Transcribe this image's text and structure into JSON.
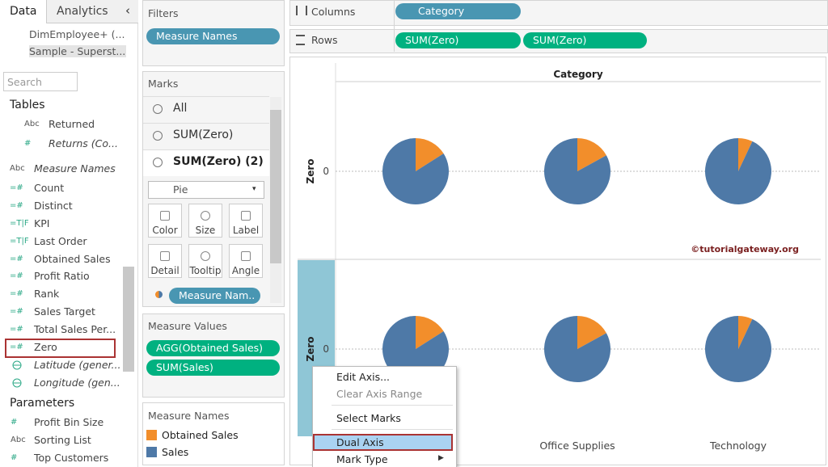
{
  "sidebar": {
    "tabs": [
      "Data",
      "Analytics"
    ],
    "sources": [
      "DimEmployee+ (...",
      "Sample - Superst..."
    ],
    "search_placeholder": "Search",
    "tables_title": "Tables",
    "fields": [
      {
        "icon": "Abc",
        "name": "Returned",
        "indent": true
      },
      {
        "icon": "#",
        "name": "Returns (Co...",
        "italic": true,
        "indent": true
      },
      {
        "icon": "Abc",
        "name": "Measure Names",
        "italic": true
      },
      {
        "icon": "=#",
        "name": "Count"
      },
      {
        "icon": "=#",
        "name": "Distinct"
      },
      {
        "icon": "=T|F",
        "name": "KPI"
      },
      {
        "icon": "=T|F",
        "name": "Last Order"
      },
      {
        "icon": "=#",
        "name": "Obtained Sales"
      },
      {
        "icon": "=#",
        "name": "Profit Ratio"
      },
      {
        "icon": "=#",
        "name": "Rank"
      },
      {
        "icon": "=#",
        "name": "Sales Target"
      },
      {
        "icon": "=#",
        "name": "Total Sales Per..."
      },
      {
        "icon": "=#",
        "name": "Zero",
        "selected": true
      },
      {
        "geo": true,
        "name": "Latitude (gener...",
        "italic": true
      },
      {
        "geo": true,
        "name": "Longitude (gen...",
        "italic": true
      }
    ],
    "parameters_title": "Parameters",
    "parameters": [
      {
        "icon": "#",
        "name": "Profit Bin Size"
      },
      {
        "icon": "Abc",
        "name": "Sorting List"
      },
      {
        "icon": "#",
        "name": "Top Customers"
      }
    ]
  },
  "filters": {
    "title": "Filters",
    "pills": [
      "Measure Names"
    ]
  },
  "marks": {
    "title": "Marks",
    "layers": [
      "All",
      "SUM(Zero)",
      "SUM(Zero) (2)"
    ],
    "mark_type": "Pie",
    "buttons": [
      "Color",
      "Size",
      "Label",
      "Detail",
      "Tooltip",
      "Angle"
    ],
    "pill": "Measure Nam.."
  },
  "measure_values": {
    "title": "Measure Values",
    "pills": [
      "AGG(Obtained Sales)",
      "SUM(Sales)"
    ]
  },
  "measure_names": {
    "title": "Measure Names",
    "items": [
      {
        "name": "Obtained Sales",
        "color": "#f28e2b"
      },
      {
        "name": "Sales",
        "color": "#4e79a7"
      }
    ]
  },
  "columns": {
    "label": "Columns",
    "pills": [
      "Category"
    ]
  },
  "rows": {
    "label": "Rows",
    "pills": [
      "SUM(Zero)",
      "SUM(Zero)"
    ]
  },
  "view": {
    "header": "Category",
    "categories": [
      null,
      "Office Supplies",
      "Technology"
    ],
    "row_label": "Zero",
    "tick": 0,
    "panes": [
      {
        "values": [
          [
            16,
            84
          ],
          [
            17,
            83
          ],
          [
            7,
            93
          ]
        ]
      },
      {
        "values": [
          [
            16,
            84
          ],
          [
            17,
            83
          ],
          [
            7,
            93
          ]
        ]
      }
    ]
  },
  "watermark": "©tutorialgateway.org",
  "context_menu": {
    "items": [
      "Edit Axis...",
      "Clear Axis Range",
      "Select Marks",
      "Dual Axis",
      "Mark Type"
    ]
  }
}
